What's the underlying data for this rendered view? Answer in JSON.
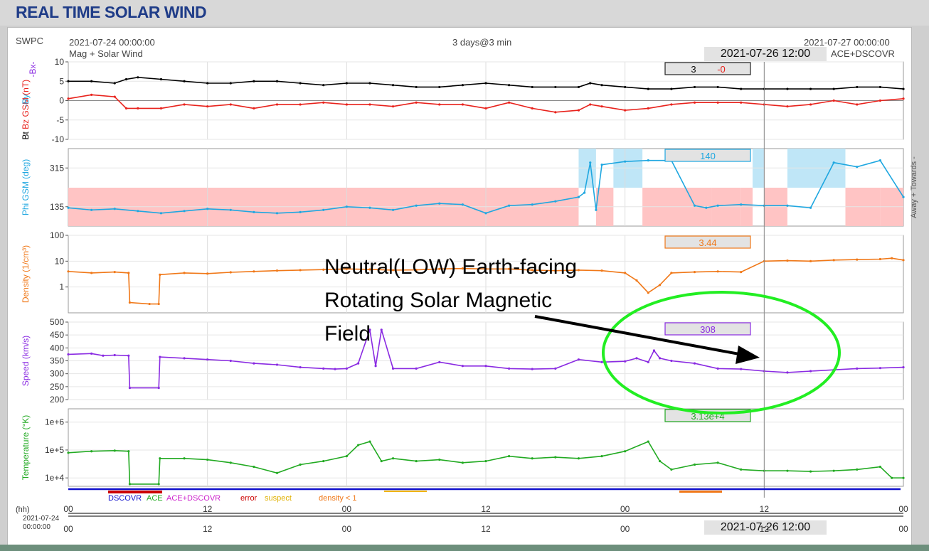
{
  "app_title": "REAL TIME SOLAR WIND",
  "header": {
    "source": "SWPC",
    "start_time": "2021-07-24 00:00:00",
    "subtitle": "Mag + Solar Wind",
    "span": "3 days@3 min",
    "end_time": "2021-07-27 00:00:00",
    "spacecraft": "ACE+DSCOVR",
    "cursor_time": "2021-07-26 12:00"
  },
  "colors": {
    "bt": "#000000",
    "bz": "#e8221c",
    "by": "#1fa7e0",
    "bx": "#8a2be2",
    "phi": "#1fa7e0",
    "density": "#f07818",
    "speed": "#8a2be2",
    "temperature": "#22aa22",
    "away_fill": "#ffc4c4",
    "towards_fill": "#bfe6f7",
    "annotation": "#22ee22"
  },
  "annotation": {
    "lines": [
      "Neutral(LOW) Earth-facing",
      "Rotating Solar Magnetic",
      "Field"
    ]
  },
  "legend": {
    "dscovr": "DSCOVR",
    "ace": "ACE",
    "ace_dscovr": "ACE+DSCOVR",
    "error": "error",
    "suspect": "suspect",
    "density": "density < 1"
  },
  "time_axis": {
    "hh_label": "(hh)",
    "date": "2021-07-24",
    "clock": "00:00:00",
    "ticks": [
      "00",
      "12",
      "00",
      "12",
      "00",
      "12",
      "00"
    ]
  },
  "chart_data": [
    {
      "type": "line",
      "id": "mag",
      "ylabel_parts": [
        "Bt",
        "Bz GSM (nT)",
        "-Bx-",
        "-By"
      ],
      "ylim": [
        -10,
        10
      ],
      "yticks": [
        "10",
        "5",
        "0",
        "-5",
        "-10"
      ],
      "readout": [
        "3",
        "-0"
      ],
      "x_hours": [
        0,
        2,
        4,
        5,
        6,
        8,
        10,
        12,
        14,
        16,
        18,
        20,
        22,
        24,
        26,
        28,
        30,
        32,
        34,
        36,
        38,
        40,
        42,
        44,
        45,
        46,
        48,
        50,
        52,
        54,
        56,
        58,
        60,
        62,
        64,
        66,
        68,
        70,
        72
      ],
      "series": [
        {
          "key": "bt",
          "values": [
            5,
            5,
            4.5,
            5.5,
            6,
            5.5,
            5,
            4.5,
            4.5,
            5,
            5,
            4.5,
            4,
            4.5,
            4.5,
            4,
            3.5,
            3.5,
            4,
            4.5,
            4,
            3.5,
            3.5,
            3.5,
            4.5,
            4,
            3.5,
            3,
            3,
            3.5,
            3.5,
            3,
            3,
            3,
            3,
            3,
            3.5,
            3.5,
            3
          ]
        },
        {
          "key": "bz",
          "values": [
            0.5,
            1.5,
            1,
            -2,
            -2,
            -2,
            -1,
            -1.5,
            -1,
            -2,
            -1,
            -1,
            -0.5,
            -1,
            -1,
            -1.5,
            -0.5,
            -1,
            -1,
            -2,
            -0.5,
            -2,
            -3,
            -2.5,
            -1,
            -1.5,
            -2.5,
            -2,
            -1,
            -0.5,
            -0.5,
            -0.5,
            -1,
            -1.5,
            -1,
            0,
            -1,
            0,
            0.5
          ]
        }
      ]
    },
    {
      "type": "line",
      "id": "phi",
      "ylabel": "Phi GSM (deg)",
      "right_label": "Away + Towards -",
      "ylim": [
        45,
        405
      ],
      "yticks": [
        "315",
        "135"
      ],
      "readout": "140",
      "x_hours": [
        0,
        2,
        4,
        6,
        8,
        10,
        12,
        14,
        16,
        18,
        20,
        22,
        24,
        26,
        28,
        30,
        32,
        34,
        36,
        38,
        40,
        42,
        44,
        44.5,
        45,
        45.5,
        46,
        48,
        50,
        52,
        54,
        55,
        56,
        58,
        60,
        62,
        64,
        66,
        68,
        70,
        72
      ],
      "values": [
        130,
        120,
        125,
        115,
        105,
        115,
        125,
        120,
        110,
        105,
        110,
        120,
        135,
        130,
        120,
        140,
        150,
        145,
        105,
        140,
        145,
        160,
        180,
        200,
        340,
        120,
        330,
        345,
        350,
        350,
        140,
        130,
        140,
        145,
        140,
        140,
        130,
        340,
        320,
        350,
        180
      ],
      "polarity": [
        {
          "from": 0,
          "to": 44,
          "dir": "away"
        },
        {
          "from": 44,
          "to": 45.5,
          "dir": "towards"
        },
        {
          "from": 45.5,
          "to": 47,
          "dir": "away"
        },
        {
          "from": 47,
          "to": 49.5,
          "dir": "towards"
        },
        {
          "from": 49.5,
          "to": 55.5,
          "dir": "away"
        },
        {
          "from": 55.5,
          "to": 58,
          "dir": "away"
        },
        {
          "from": 58,
          "to": 59,
          "dir": "away"
        },
        {
          "from": 59,
          "to": 60,
          "dir": "towards"
        },
        {
          "from": 60,
          "to": 62,
          "dir": "away"
        },
        {
          "from": 62,
          "to": 67,
          "dir": "towards"
        },
        {
          "from": 67,
          "to": 70,
          "dir": "away"
        },
        {
          "from": 70,
          "to": 72,
          "dir": "away"
        }
      ]
    },
    {
      "type": "line",
      "id": "density",
      "ylabel": "Density (1/cm³)",
      "log": true,
      "ylim": [
        0.1,
        100
      ],
      "yticks": [
        "100",
        "10",
        "1"
      ],
      "readout": "3.44",
      "x_hours": [
        0,
        2,
        4,
        5.2,
        5.3,
        7,
        7.8,
        7.9,
        10,
        12,
        14,
        16,
        18,
        20,
        22,
        24,
        26,
        28,
        30,
        32,
        34,
        36,
        38,
        40,
        42,
        44,
        46,
        48,
        49,
        50,
        51,
        52,
        54,
        56,
        58,
        60,
        62,
        64,
        66,
        68,
        70,
        71,
        72
      ],
      "values": [
        4,
        3.5,
        3.8,
        3.5,
        0.25,
        0.22,
        0.22,
        3,
        3.5,
        3.3,
        3.7,
        4,
        4.3,
        4.5,
        4.7,
        5,
        4.8,
        4.5,
        4.6,
        5,
        5.2,
        5,
        5,
        4.5,
        4.3,
        4.5,
        4.3,
        3.5,
        1.8,
        0.6,
        1.2,
        3.5,
        3.8,
        4,
        3.8,
        10,
        10.5,
        10,
        11,
        11.5,
        12,
        13,
        11
      ]
    },
    {
      "type": "line",
      "id": "speed",
      "ylabel": "Speed (km/s)",
      "ylim": [
        200,
        500
      ],
      "yticks": [
        "500",
        "450",
        "400",
        "350",
        "300",
        "250",
        "200"
      ],
      "readout": "308",
      "x_hours": [
        0,
        2,
        3,
        4,
        5.2,
        5.3,
        7.8,
        7.9,
        10,
        12,
        14,
        16,
        18,
        20,
        22,
        23,
        24,
        25,
        26,
        26.5,
        27,
        28,
        30,
        32,
        34,
        36,
        38,
        40,
        42,
        44,
        46,
        48,
        49,
        50,
        50.5,
        51,
        52,
        54,
        56,
        58,
        60,
        62,
        64,
        66,
        68,
        70,
        72
      ],
      "values": [
        375,
        378,
        370,
        372,
        370,
        245,
        245,
        365,
        360,
        355,
        350,
        340,
        335,
        325,
        320,
        318,
        320,
        340,
        470,
        330,
        470,
        320,
        320,
        345,
        330,
        330,
        320,
        318,
        320,
        355,
        345,
        348,
        360,
        345,
        390,
        360,
        350,
        340,
        320,
        318,
        310,
        305,
        310,
        315,
        320,
        322,
        325
      ]
    },
    {
      "type": "line",
      "id": "temperature",
      "ylabel": "Temperature (°K)",
      "log": true,
      "ylim": [
        5000,
        3000000
      ],
      "yticks": [
        "1e+6",
        "1e+5",
        "1e+4"
      ],
      "readout": "3.13e+4",
      "x_hours": [
        0,
        2,
        4,
        5.2,
        5.3,
        7.8,
        7.9,
        10,
        12,
        14,
        16,
        18,
        20,
        22,
        24,
        25,
        26,
        27,
        28,
        30,
        32,
        34,
        36,
        38,
        40,
        42,
        44,
        46,
        48,
        50,
        51,
        52,
        54,
        56,
        58,
        60,
        62,
        64,
        66,
        68,
        70,
        71,
        72
      ],
      "values": [
        80000,
        90000,
        95000,
        90000,
        6000,
        6000,
        50000,
        50000,
        45000,
        35000,
        25000,
        15000,
        30000,
        40000,
        60000,
        150000,
        200000,
        40000,
        50000,
        40000,
        45000,
        35000,
        40000,
        60000,
        50000,
        55000,
        50000,
        60000,
        90000,
        200000,
        40000,
        20000,
        30000,
        35000,
        20000,
        18000,
        18000,
        17000,
        18000,
        20000,
        25000,
        10000,
        10000
      ]
    }
  ]
}
